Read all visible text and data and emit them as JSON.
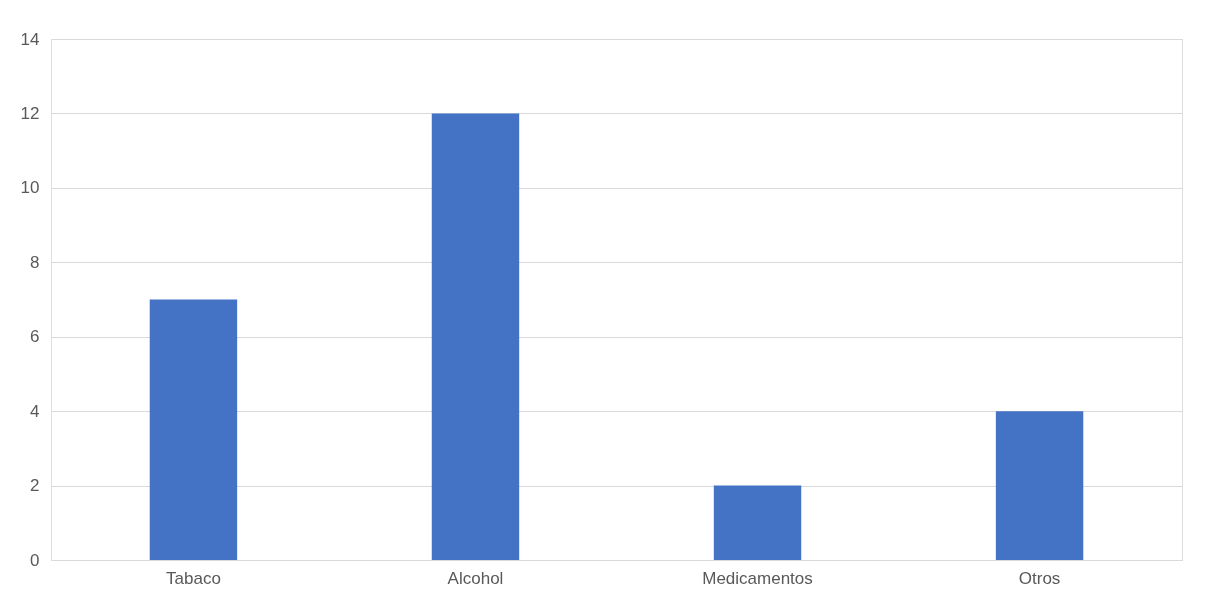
{
  "chart_data": {
    "type": "bar",
    "categories": [
      "Tabaco",
      "Alcohol",
      "Medicamentos",
      "Otros"
    ],
    "values": [
      7,
      12,
      2,
      4
    ],
    "color": "#4472c4",
    "ylim": [
      0,
      14
    ],
    "yticks": [
      0,
      2,
      4,
      6,
      8,
      10,
      12,
      14
    ],
    "grid": "y"
  }
}
